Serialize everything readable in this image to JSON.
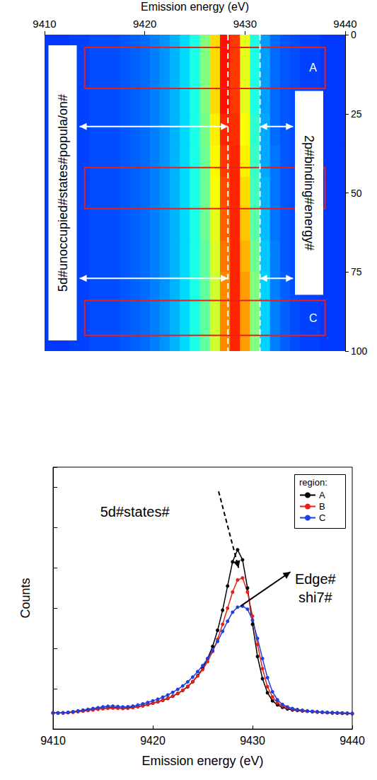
{
  "chart_data": [
    {
      "type": "heatmap",
      "xlabel": "Emission energy (eV)",
      "x": [
        9410,
        9411,
        9412,
        9413,
        9414,
        9415,
        9416,
        9417,
        9418,
        9419,
        9420,
        9421,
        9422,
        9423,
        9424,
        9425,
        9426,
        9427,
        9428,
        9429,
        9430,
        9431,
        9432,
        9433,
        9434,
        9435,
        9436,
        9437,
        9438,
        9439,
        9440
      ],
      "y": [
        0,
        10,
        20,
        30,
        40,
        50,
        60,
        70,
        80,
        90,
        100
      ],
      "values": [
        [
          18,
          18,
          18,
          19,
          19,
          20,
          20,
          20,
          21,
          22,
          23,
          25,
          27,
          30,
          34,
          40,
          50,
          66,
          86,
          82,
          60,
          40,
          28,
          23,
          21,
          20,
          19,
          19,
          18,
          18,
          18
        ],
        [
          18,
          18,
          18,
          19,
          19,
          20,
          20,
          20,
          21,
          22,
          23,
          25,
          27,
          30,
          34,
          40,
          50,
          66,
          86,
          82,
          60,
          40,
          28,
          23,
          21,
          20,
          19,
          19,
          18,
          18,
          18
        ],
        [
          18,
          18,
          18,
          19,
          19,
          20,
          20,
          20,
          21,
          22,
          23,
          25,
          27,
          30,
          34,
          40,
          50,
          66,
          86,
          82,
          60,
          40,
          28,
          23,
          21,
          20,
          19,
          19,
          18,
          18,
          18
        ],
        [
          18,
          18,
          18,
          19,
          19,
          20,
          20,
          20,
          21,
          22,
          23,
          25,
          27,
          30,
          34,
          40,
          49,
          64,
          84,
          83,
          62,
          42,
          29,
          23,
          21,
          20,
          19,
          19,
          18,
          18,
          18
        ],
        [
          18,
          18,
          18,
          19,
          19,
          20,
          20,
          20,
          21,
          22,
          23,
          25,
          27,
          30,
          34,
          40,
          48,
          63,
          82,
          84,
          64,
          43,
          29,
          24,
          21,
          20,
          19,
          19,
          18,
          18,
          18
        ],
        [
          18,
          18,
          18,
          19,
          19,
          20,
          20,
          20,
          21,
          22,
          23,
          25,
          27,
          30,
          34,
          40,
          48,
          62,
          80,
          84,
          66,
          44,
          30,
          24,
          21,
          20,
          19,
          19,
          18,
          18,
          18
        ],
        [
          18,
          18,
          18,
          19,
          19,
          20,
          20,
          20,
          21,
          22,
          23,
          25,
          27,
          30,
          34,
          40,
          48,
          60,
          78,
          84,
          68,
          46,
          31,
          24,
          21,
          20,
          19,
          19,
          18,
          18,
          18
        ],
        [
          18,
          18,
          18,
          19,
          19,
          20,
          20,
          20,
          21,
          22,
          23,
          25,
          27,
          30,
          34,
          40,
          47,
          59,
          76,
          84,
          70,
          48,
          32,
          25,
          21,
          20,
          19,
          19,
          18,
          18,
          18
        ],
        [
          18,
          18,
          18,
          19,
          19,
          20,
          20,
          20,
          21,
          22,
          23,
          25,
          27,
          30,
          34,
          40,
          47,
          58,
          74,
          84,
          72,
          50,
          33,
          25,
          22,
          20,
          19,
          19,
          18,
          18,
          18
        ],
        [
          18,
          18,
          18,
          19,
          19,
          20,
          20,
          20,
          21,
          22,
          23,
          25,
          27,
          30,
          34,
          40,
          47,
          58,
          74,
          84,
          72,
          50,
          33,
          25,
          22,
          20,
          19,
          19,
          18,
          18,
          18
        ],
        [
          18,
          18,
          18,
          19,
          19,
          20,
          20,
          20,
          21,
          22,
          23,
          25,
          27,
          30,
          34,
          40,
          47,
          58,
          74,
          84,
          72,
          50,
          33,
          25,
          22,
          20,
          19,
          19,
          18,
          18,
          18
        ]
      ],
      "zlim": [
        0,
        100
      ],
      "xlim": [
        9410,
        9440
      ],
      "xticks": [
        9410,
        9420,
        9430,
        9440
      ],
      "ylim": [
        0,
        100
      ],
      "yticks": [
        0,
        25,
        50,
        75,
        100
      ],
      "regions": [
        {
          "label": "A",
          "x": [
            9414,
            9438
          ],
          "y": [
            4,
            17
          ]
        },
        {
          "x": [
            9414,
            9438
          ],
          "y": [
            42,
            55
          ]
        },
        {
          "label": "C",
          "x": [
            9414,
            9438
          ],
          "y": [
            84,
            95
          ]
        }
      ],
      "vlines": [
        {
          "x": 9428.3,
          "line_style": "dashed"
        },
        {
          "x": 9431.5,
          "line_style": "dashed"
        }
      ],
      "arrows": [
        {
          "x": [
            9413.5,
            9428.3
          ],
          "y": 29
        },
        {
          "x": [
            9431.5,
            9434.8
          ],
          "y": 29
        },
        {
          "x": [
            9413.5,
            9428.3
          ],
          "y": 77
        },
        {
          "x": [
            9431.5,
            9434.8
          ],
          "y": 77
        }
      ],
      "annotations": [
        {
          "text": "5d#unoccupied#states#popula/on#",
          "x": 9411.8,
          "y": 50
        },
        {
          "text": "2p#binding#energy#",
          "x": 9436.4,
          "y": 50
        }
      ]
    },
    {
      "type": "line",
      "xlabel": "Emission energy (eV)",
      "ylabel": "Counts",
      "x": [
        9410,
        9410.5,
        9411,
        9411.5,
        9412,
        9412.5,
        9413,
        9413.5,
        9414,
        9414.5,
        9415,
        9415.5,
        9416,
        9416.5,
        9417,
        9417.5,
        9418,
        9418.5,
        9419,
        9419.5,
        9420,
        9420.5,
        9421,
        9421.5,
        9422,
        9422.5,
        9423,
        9423.5,
        9424,
        9424.5,
        9425,
        9425.5,
        9426,
        9426.5,
        9427,
        9427.5,
        9428,
        9428.5,
        9429,
        9429.5,
        9430,
        9430.5,
        9431,
        9431.5,
        9432,
        9432.5,
        9433,
        9433.5,
        9434,
        9434.5,
        9435,
        9435.5,
        9436,
        9436.5,
        9437,
        9437.5,
        9438,
        9438.5,
        9439,
        9439.5,
        9440
      ],
      "series": [
        {
          "name": "A",
          "color": "#000000",
          "values": [
            8,
            8,
            8,
            8.2,
            8.5,
            8.8,
            9,
            9.3,
            9.6,
            10,
            10.3,
            10.5,
            10.6,
            10.5,
            10.4,
            10.5,
            10.8,
            11.2,
            11.6,
            12.2,
            12.8,
            13.5,
            14.3,
            15.2,
            16.3,
            17.6,
            19.2,
            21,
            23.5,
            26.5,
            30,
            35,
            41,
            49,
            59,
            71,
            83,
            89,
            84,
            70,
            52,
            36,
            25,
            18,
            14,
            12,
            10.8,
            10,
            9.5,
            9.2,
            9,
            8.8,
            8.6,
            8.4,
            8.3,
            8.1,
            8,
            7.9,
            7.8,
            7.7,
            7.6
          ]
        },
        {
          "name": "B",
          "color": "#e8201a",
          "values": [
            8,
            8,
            8,
            8.1,
            8.3,
            8.6,
            8.9,
            9.2,
            9.5,
            9.8,
            10.1,
            10.3,
            10.4,
            10.3,
            10.2,
            10.3,
            10.6,
            11,
            11.5,
            12.1,
            12.8,
            13.5,
            14.3,
            15.3,
            16.4,
            17.7,
            19.3,
            21.2,
            23.5,
            26.3,
            29.5,
            33.5,
            38.5,
            44.5,
            52,
            60,
            68,
            74,
            75,
            68,
            56,
            42,
            30,
            21,
            16,
            13,
            11.5,
            10.5,
            9.8,
            9.4,
            9.1,
            8.9,
            8.7,
            8.5,
            8.3,
            8.2,
            8.1,
            8,
            7.9,
            7.8,
            7.7
          ]
        },
        {
          "name": "C",
          "color": "#1f3fe0",
          "values": [
            8,
            8,
            8.1,
            8.3,
            8.6,
            9,
            9.4,
            9.8,
            10.2,
            10.6,
            11,
            11.3,
            11.4,
            11.2,
            11,
            11.1,
            11.4,
            11.9,
            12.5,
            13.2,
            14,
            14.8,
            15.8,
            16.9,
            18.2,
            19.7,
            21.4,
            23.4,
            25.8,
            28.5,
            31.5,
            35,
            39,
            43.5,
            48.5,
            53.5,
            58,
            60.5,
            61,
            59.5,
            54,
            45,
            35,
            25.5,
            18.5,
            14.5,
            12.2,
            11,
            10.2,
            9.7,
            9.3,
            9,
            8.8,
            8.6,
            8.4,
            8.3,
            8.2,
            8.1,
            8,
            7.9,
            7.8
          ]
        }
      ],
      "marker": "circle",
      "xlim": [
        9410,
        9440
      ],
      "xticks": [
        9410,
        9420,
        9430,
        9440
      ],
      "ylim": [
        0,
        130
      ],
      "yticks": [
        0,
        20,
        40,
        60,
        80,
        100,
        120
      ],
      "tick_labels": "x",
      "legend": "upper right",
      "legend_title": "region:",
      "annotations": [
        {
          "text": "5d#states#",
          "x": 9418.2,
          "y": 108
        },
        {
          "text": "Edge#\nshi7#",
          "x": 9436.3,
          "y": 70
        }
      ],
      "arrows": [
        {
          "x": [
            9426.6,
            9428.6
          ],
          "y": [
            118,
            80
          ],
          "line_style": "dashed"
        },
        {
          "x": [
            9428.8,
            9433.8
          ],
          "y": [
            61,
            78
          ],
          "line_style": "solid"
        }
      ]
    }
  ]
}
